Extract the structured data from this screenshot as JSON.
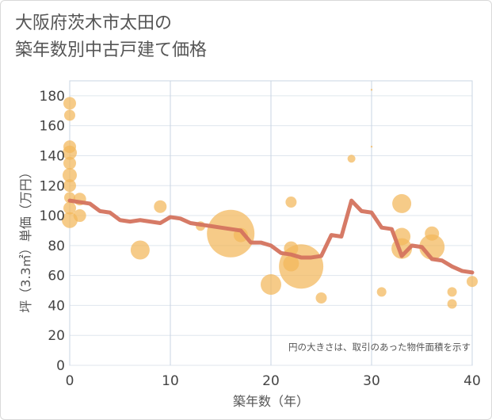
{
  "title": {
    "line1": "大阪府茨木市太田の",
    "line2": "築年数別中古戸建て価格"
  },
  "chart_data": {
    "type": "scatter",
    "xlabel": "築年数（年）",
    "ylabel": "坪（3.3㎡）単価（万円）",
    "xlim": [
      0,
      40
    ],
    "ylim": [
      0,
      190
    ],
    "xticks": [
      0,
      10,
      20,
      30,
      40
    ],
    "yticks": [
      0,
      20,
      40,
      60,
      80,
      100,
      120,
      140,
      160,
      180
    ],
    "grid": true,
    "annotation": "円の大きさは、取引のあった物件面積を示す",
    "colors": {
      "bubble": "#f2b75a",
      "line": "#d4735e"
    },
    "bubbles": [
      {
        "x": 0,
        "y": 175,
        "s": 8
      },
      {
        "x": 0,
        "y": 167,
        "s": 7
      },
      {
        "x": 0,
        "y": 146,
        "s": 8
      },
      {
        "x": 0,
        "y": 142,
        "s": 9
      },
      {
        "x": 0,
        "y": 135,
        "s": 8
      },
      {
        "x": 0,
        "y": 127,
        "s": 9
      },
      {
        "x": 0,
        "y": 120,
        "s": 8
      },
      {
        "x": 0,
        "y": 112,
        "s": 7
      },
      {
        "x": 0,
        "y": 105,
        "s": 8
      },
      {
        "x": 0,
        "y": 97,
        "s": 10
      },
      {
        "x": 1,
        "y": 111,
        "s": 8
      },
      {
        "x": 1,
        "y": 100,
        "s": 8
      },
      {
        "x": 7,
        "y": 77,
        "s": 12
      },
      {
        "x": 9,
        "y": 106,
        "s": 8
      },
      {
        "x": 13,
        "y": 93,
        "s": 6
      },
      {
        "x": 16,
        "y": 88,
        "s": 30
      },
      {
        "x": 17,
        "y": 87,
        "s": 9
      },
      {
        "x": 20,
        "y": 54,
        "s": 13
      },
      {
        "x": 22,
        "y": 109,
        "s": 7
      },
      {
        "x": 22,
        "y": 78,
        "s": 9
      },
      {
        "x": 22,
        "y": 68,
        "s": 10
      },
      {
        "x": 23,
        "y": 66,
        "s": 28
      },
      {
        "x": 25,
        "y": 45,
        "s": 7
      },
      {
        "x": 28,
        "y": 138,
        "s": 5
      },
      {
        "x": 30,
        "y": 184,
        "s": 1.2
      },
      {
        "x": 30,
        "y": 146,
        "s": 1.2
      },
      {
        "x": 31,
        "y": 49,
        "s": 6
      },
      {
        "x": 33,
        "y": 108,
        "s": 12
      },
      {
        "x": 33,
        "y": 86,
        "s": 11
      },
      {
        "x": 33,
        "y": 78,
        "s": 13
      },
      {
        "x": 36,
        "y": 88,
        "s": 9
      },
      {
        "x": 36,
        "y": 79,
        "s": 16
      },
      {
        "x": 38,
        "y": 49,
        "s": 6
      },
      {
        "x": 38,
        "y": 41,
        "s": 6
      },
      {
        "x": 40,
        "y": 56,
        "s": 7
      }
    ],
    "line": {
      "x": [
        0,
        1,
        2,
        3,
        4,
        5,
        6,
        7,
        8,
        9,
        10,
        11,
        12,
        13,
        14,
        15,
        16,
        17,
        18,
        19,
        20,
        21,
        22,
        23,
        24,
        25,
        26,
        27,
        28,
        29,
        30,
        31,
        32,
        33,
        34,
        35,
        36,
        37,
        38,
        39,
        40
      ],
      "y": [
        110,
        109,
        108,
        103,
        102,
        97,
        96,
        97,
        96,
        95,
        99,
        98,
        95,
        94,
        93,
        92,
        91,
        90,
        82,
        82,
        80,
        75,
        74,
        72,
        72,
        73,
        87,
        86,
        110,
        103,
        102,
        92,
        91,
        73,
        80,
        79,
        71,
        70,
        66,
        63,
        62
      ]
    }
  }
}
